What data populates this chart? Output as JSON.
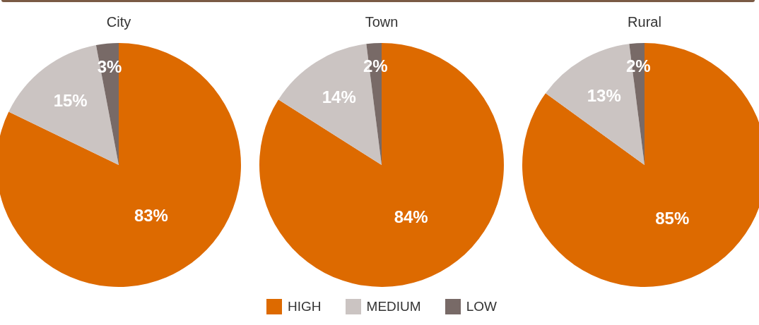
{
  "chart_data": [
    {
      "type": "pie",
      "title": "City",
      "values": [
        83,
        15,
        3
      ],
      "colors": [
        "#dd6a00",
        "#cbc4c2",
        "#786a67"
      ],
      "value_labels": [
        "83%",
        "15%",
        "3%"
      ]
    },
    {
      "type": "pie",
      "title": "Town",
      "categories": [
        "HIGH",
        "MEDIUM",
        "LOW"
      ],
      "values": [
        84,
        14,
        2
      ],
      "colors": [
        "#dd6a00",
        "#cbc4c2",
        "#786a67"
      ],
      "value_labels": [
        "84%",
        "14%",
        "2%"
      ],
      "legend": "bottom"
    },
    {
      "type": "pie",
      "title": "Rural",
      "values": [
        85,
        13,
        2
      ],
      "colors": [
        "#dd6a00",
        "#cbc4c2",
        "#786a67"
      ],
      "value_labels": [
        "85%",
        "13%",
        "2%"
      ]
    }
  ]
}
